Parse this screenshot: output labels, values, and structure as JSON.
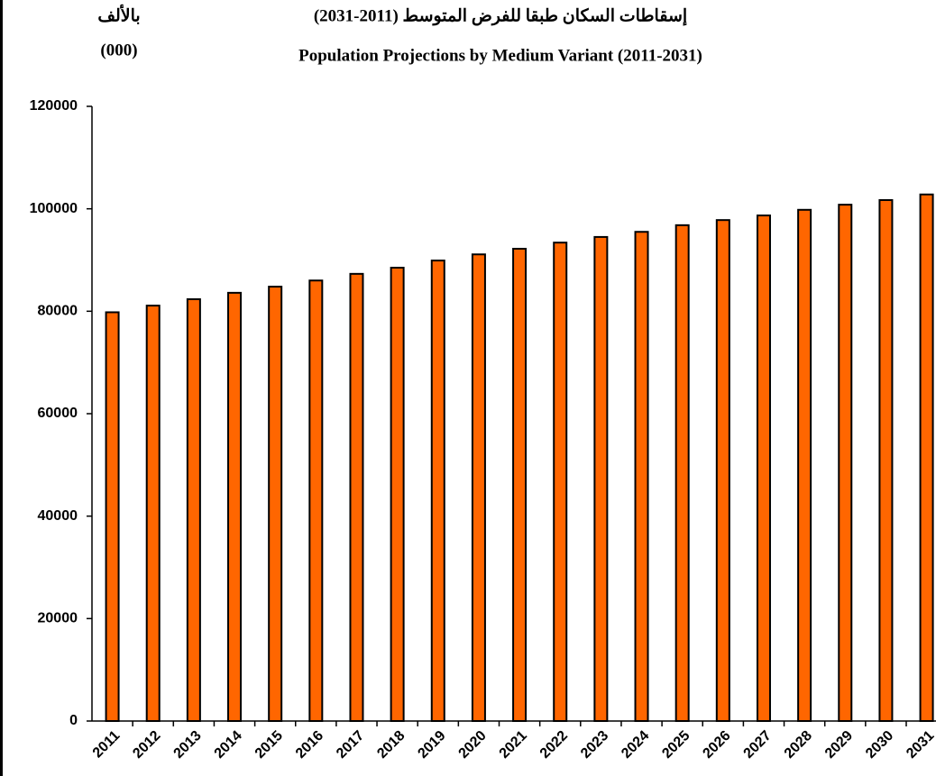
{
  "chart_data": {
    "type": "bar",
    "title": "إسقاطات السكان طبقا للفرض المتوسط (2011-2031)",
    "subtitle": "Population Projections by Medium Variant (2011-2031)",
    "unit_label": [
      "بالألف",
      "(000)"
    ],
    "categories": [
      "2011",
      "2012",
      "2013",
      "2014",
      "2015",
      "2016",
      "2017",
      "2018",
      "2019",
      "2020",
      "2021",
      "2022",
      "2023",
      "2024",
      "2025",
      "2026",
      "2027",
      "2028",
      "2029",
      "2030",
      "2031"
    ],
    "values": [
      79800,
      81100,
      82350,
      83600,
      84800,
      86000,
      87300,
      88500,
      89900,
      91100,
      92200,
      93400,
      94500,
      95500,
      96800,
      97800,
      98700,
      99800,
      100800,
      101700,
      102800
    ],
    "color": "#ff6600",
    "ylim": [
      0,
      120000
    ],
    "yticks": [
      0,
      20000,
      40000,
      60000,
      80000,
      100000,
      120000
    ],
    "grid": false
  }
}
